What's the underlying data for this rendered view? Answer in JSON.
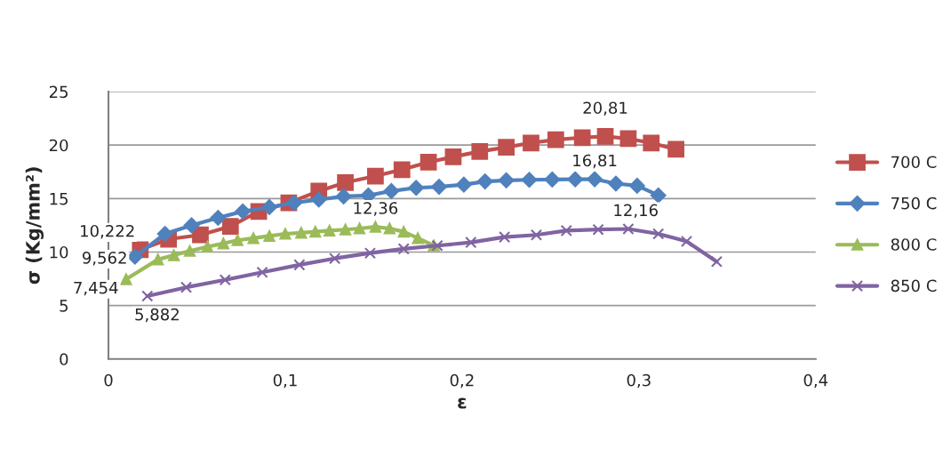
{
  "chart_data": {
    "type": "line",
    "xlabel": "ε",
    "ylabel": "σ (Kg/mm²)",
    "xlim": [
      0,
      0.4
    ],
    "ylim": [
      0,
      25
    ],
    "xticks": [
      0,
      {
        "value": 0.1,
        "label": "0,1"
      },
      {
        "value": 0.2,
        "label": "0,2"
      },
      {
        "value": 0.3,
        "label": "0,3"
      },
      {
        "value": 0.4,
        "label": "0,4"
      }
    ],
    "yticks": [
      0,
      5,
      10,
      15,
      20,
      25
    ],
    "grid": "y",
    "legend": "right",
    "series": [
      {
        "name": "700 C",
        "color": "#c0504d",
        "marker": "square",
        "x": [
          0.018,
          0.034,
          0.052,
          0.069,
          0.085,
          0.102,
          0.119,
          0.134,
          0.151,
          0.166,
          0.181,
          0.195,
          0.21,
          0.225,
          0.239,
          0.253,
          0.268,
          0.281,
          0.294,
          0.307,
          0.321
        ],
        "values": [
          10.222,
          11.2,
          11.6,
          12.4,
          13.8,
          14.6,
          15.7,
          16.5,
          17.1,
          17.7,
          18.4,
          18.9,
          19.4,
          19.8,
          20.2,
          20.5,
          20.7,
          20.81,
          20.6,
          20.2,
          19.6
        ]
      },
      {
        "name": "750 C",
        "color": "#4f81bd",
        "marker": "diamond",
        "x": [
          0.015,
          0.032,
          0.047,
          0.062,
          0.076,
          0.091,
          0.105,
          0.119,
          0.133,
          0.147,
          0.16,
          0.174,
          0.187,
          0.201,
          0.213,
          0.225,
          0.238,
          0.251,
          0.264,
          0.275,
          0.287,
          0.299,
          0.311
        ],
        "values": [
          9.562,
          11.7,
          12.5,
          13.2,
          13.8,
          14.2,
          14.6,
          14.9,
          15.2,
          15.3,
          15.7,
          16.0,
          16.1,
          16.3,
          16.6,
          16.7,
          16.75,
          16.78,
          16.8,
          16.81,
          16.4,
          16.2,
          15.3
        ]
      },
      {
        "name": "800 C",
        "color": "#9bbb59",
        "marker": "triangle",
        "x": [
          0.01,
          0.028,
          0.037,
          0.046,
          0.056,
          0.065,
          0.073,
          0.082,
          0.091,
          0.1,
          0.109,
          0.117,
          0.125,
          0.134,
          0.142,
          0.151,
          0.159,
          0.167,
          0.175,
          0.184
        ],
        "values": [
          7.454,
          9.3,
          9.7,
          10.1,
          10.5,
          10.8,
          11.1,
          11.3,
          11.5,
          11.7,
          11.8,
          11.9,
          12.0,
          12.1,
          12.2,
          12.36,
          12.2,
          11.9,
          11.3,
          10.6
        ]
      },
      {
        "name": "850 C",
        "color": "#8064a2",
        "marker": "cross",
        "x": [
          0.022,
          0.044,
          0.066,
          0.087,
          0.108,
          0.128,
          0.148,
          0.167,
          0.186,
          0.205,
          0.224,
          0.242,
          0.259,
          0.277,
          0.294,
          0.311,
          0.327,
          0.344
        ],
        "values": [
          5.882,
          6.7,
          7.4,
          8.1,
          8.8,
          9.4,
          9.9,
          10.3,
          10.6,
          10.9,
          11.4,
          11.6,
          12.0,
          12.1,
          12.16,
          11.7,
          11.0,
          9.1
        ]
      }
    ],
    "annotations": [
      {
        "text": "10,222",
        "x": 0.018,
        "y": 10.222
      },
      {
        "text": "9,562",
        "x": 0.015,
        "y": 9.562
      },
      {
        "text": "7,454",
        "x": 0.01,
        "y": 7.454
      },
      {
        "text": "5,882",
        "x": 0.022,
        "y": 5.882
      },
      {
        "text": "12,36",
        "x": 0.151,
        "y": 12.36
      },
      {
        "text": "20,81",
        "x": 0.281,
        "y": 20.81
      },
      {
        "text": "16,81",
        "x": 0.275,
        "y": 16.81
      },
      {
        "text": "12,16",
        "x": 0.294,
        "y": 12.16
      }
    ]
  }
}
